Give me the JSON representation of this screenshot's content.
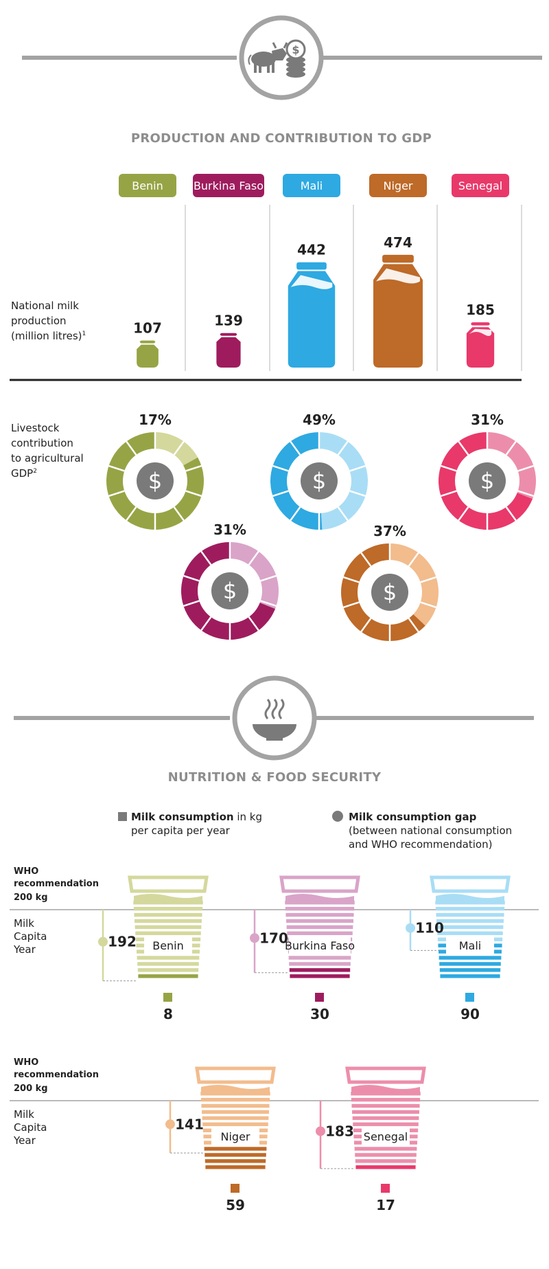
{
  "sections": {
    "production_title": "PRODUCTION AND CONTRIBUTION TO GDP",
    "nutrition_title": "NUTRITION & FOOD SECURITY"
  },
  "labels": {
    "milk_production": [
      "National milk",
      "production",
      "(million litres)"
    ],
    "milk_production_note": "1",
    "livestock_gdp": [
      "Livestock",
      "contribution",
      "to agricultural",
      "GDP"
    ],
    "livestock_gdp_note": "2",
    "who_recommendation": [
      "WHO",
      "recommendation",
      "200 kg"
    ],
    "milk_capita_year": [
      "Milk",
      "Capita",
      "Year"
    ]
  },
  "legend": {
    "consumption_bold": "Milk consumption",
    "consumption_rest": " in kg",
    "consumption_line2": "per capita per year",
    "gap_bold": "Milk consumption gap",
    "gap_line2": "(between national consumption",
    "gap_line3": "and WHO recommendation)"
  },
  "colors": {
    "Benin": "#97a445",
    "Burkina Faso": "#9e1c5e",
    "Mali": "#2ea9e1",
    "Niger": "#be6a28",
    "Senegal": "#e8396a",
    "grey": "#a3a3a3",
    "icon_grey": "#7a7a7a"
  },
  "light_colors": {
    "Benin": "#d4d89d",
    "Burkina Faso": "#d9a4c8",
    "Mali": "#a9ddf5",
    "Niger": "#f2bc8d",
    "Senegal": "#ec8eab"
  },
  "icons": {
    "production": "cow-and-coins-icon",
    "nutrition": "steaming-bowl-icon",
    "gdp": "dollar-coin-icon"
  },
  "chart_data": [
    {
      "type": "bar",
      "title": "",
      "categories": [
        "Benin",
        "Burkina Faso",
        "Mali",
        "Niger",
        "Senegal"
      ],
      "values": [
        107,
        139,
        442,
        474,
        185
      ],
      "unit": "million litres",
      "ylabel": "National milk production (million litres)"
    },
    {
      "type": "pie",
      "categories": [
        "Benin",
        "Mali",
        "Senegal",
        "Burkina Faso",
        "Niger"
      ],
      "values": [
        17,
        49,
        31,
        31,
        37
      ],
      "labels": [
        "17%",
        "49%",
        "31%",
        "31%",
        "37%"
      ],
      "ylabel": "Livestock contribution to agricultural GDP"
    },
    {
      "type": "bar",
      "categories": [
        "Benin",
        "Burkina Faso",
        "Mali",
        "Niger",
        "Senegal"
      ],
      "series": [
        {
          "name": "Milk consumption",
          "values": [
            8,
            30,
            90,
            59,
            17
          ]
        },
        {
          "name": "Milk consumption gap",
          "values": [
            192,
            170,
            110,
            141,
            183
          ]
        }
      ],
      "reference": 200,
      "reference_label": "WHO recommendation 200 kg"
    }
  ]
}
